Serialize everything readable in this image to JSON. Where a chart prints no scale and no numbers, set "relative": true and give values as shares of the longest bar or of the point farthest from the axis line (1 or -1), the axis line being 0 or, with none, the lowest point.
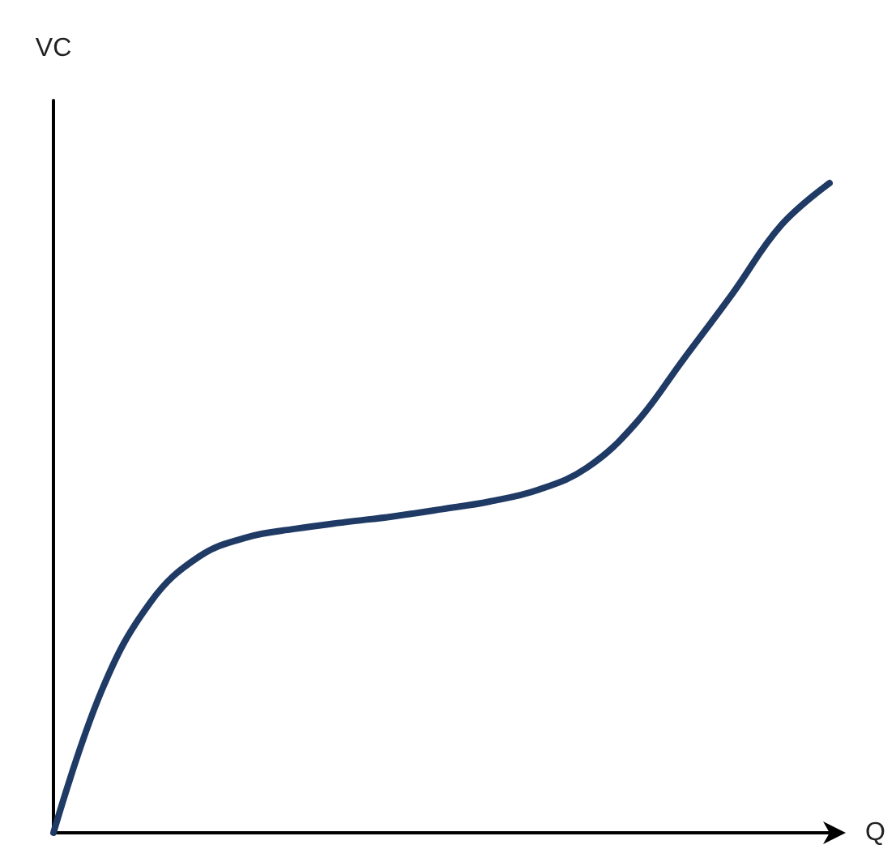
{
  "chart_data": {
    "type": "line",
    "relative": true,
    "xlabel": "Q",
    "ylabel": "VC",
    "categories": [
      null,
      null,
      null,
      null,
      null,
      null,
      null,
      null,
      null,
      null,
      null,
      null,
      null,
      null,
      null,
      null,
      null
    ],
    "series": [
      {
        "color": "#1f3a64",
        "values": [
          0,
          0.22,
          0.355,
          0.425,
          0.455,
          0.468,
          0.478,
          0.487,
          0.498,
          0.51,
          0.528,
          0.562,
          0.63,
          0.73,
          0.83,
          0.935,
          1
        ]
      }
    ],
    "grid": false,
    "marker": "none",
    "line_style": "solid"
  }
}
